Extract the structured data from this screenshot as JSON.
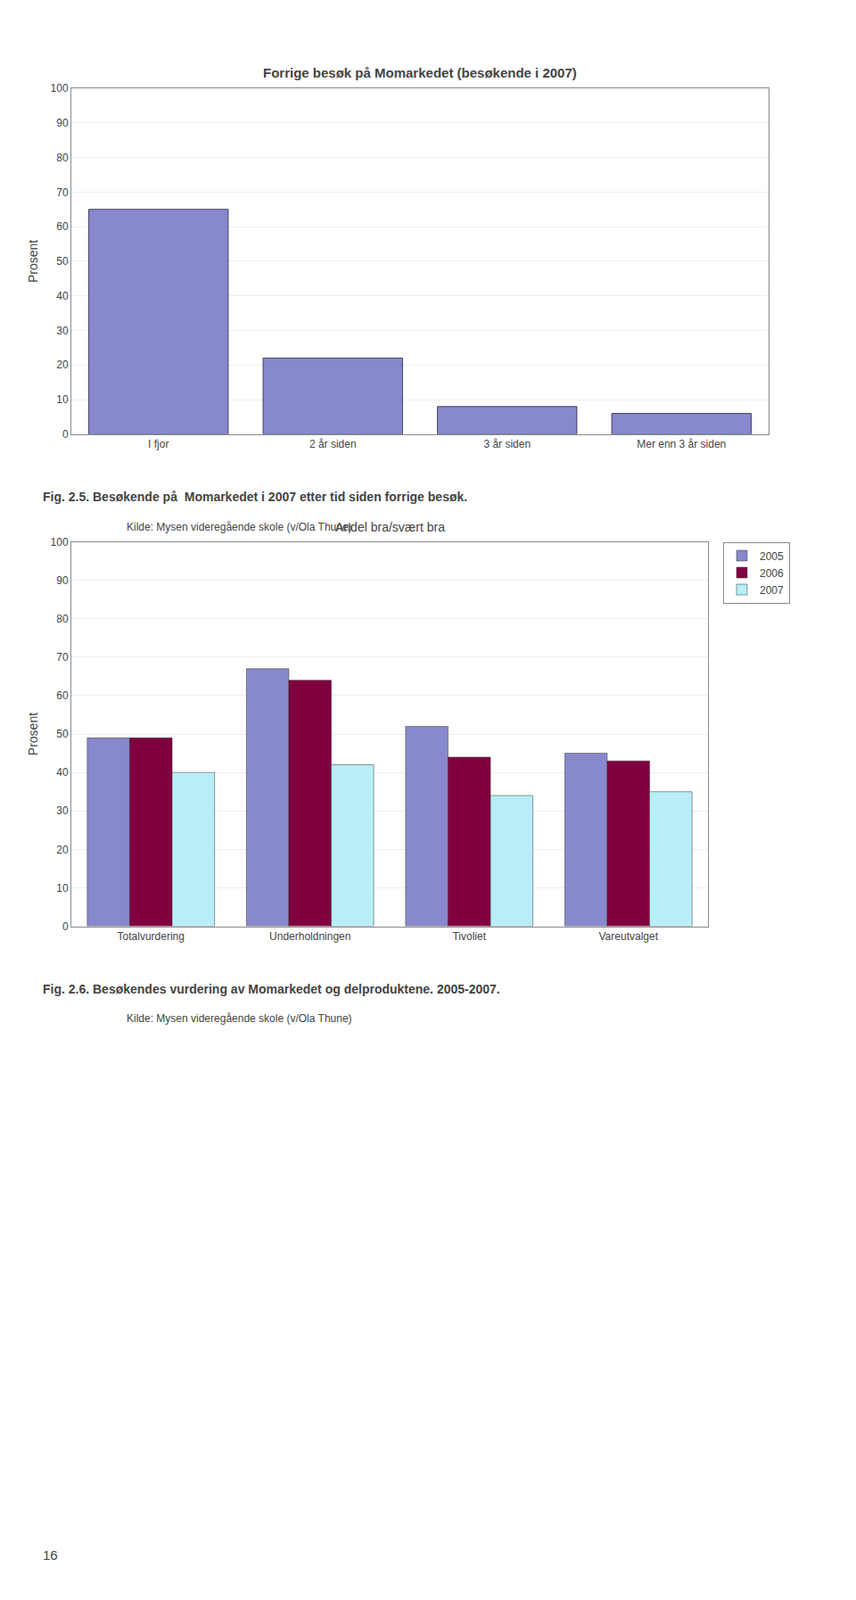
{
  "chart_data": [
    {
      "type": "bar",
      "title": "Forrige besøk på Momarkedet (besøkende i 2007)",
      "ylabel": "Prosent",
      "categories": [
        "I fjor",
        "2 år siden",
        "3 år siden",
        "Mer enn 3 år siden"
      ],
      "values": [
        65,
        22,
        8,
        6
      ],
      "color": "#8888cc",
      "ylim": [
        0,
        100
      ],
      "yticks": [
        0,
        10,
        20,
        30,
        40,
        50,
        60,
        70,
        80,
        90,
        100
      ],
      "grid": true,
      "annotations": [
        "Fig. 2.5. Besøkende på  Momarkedet i 2007 etter tid siden forrige besøk.",
        "Kilde: Mysen videregående skole (v/Ola Thune)"
      ]
    },
    {
      "type": "bar",
      "title": "Andel bra/svært bra",
      "ylabel": "Prosent",
      "categories": [
        "Totalvurdering",
        "Underholdningen",
        "Tivoliet",
        "Vareutvalget"
      ],
      "series": [
        {
          "name": "2005",
          "color": "#8888cc",
          "values": [
            49,
            67,
            52,
            45
          ]
        },
        {
          "name": "2006",
          "color": "#800040",
          "values": [
            49,
            64,
            44,
            43
          ]
        },
        {
          "name": "2007",
          "color": "#b8eef8",
          "values": [
            40,
            42,
            34,
            35
          ]
        }
      ],
      "ylim": [
        0,
        100
      ],
      "yticks": [
        0,
        10,
        20,
        30,
        40,
        50,
        60,
        70,
        80,
        90,
        100
      ],
      "grid": true,
      "legend": "right",
      "annotations": [
        "Fig. 2.6. Besøkendes vurdering av Momarkedet og delproduktene. 2005-2007.",
        "Kilde: Mysen videregående skole (v/Ola Thune)",
        "16"
      ]
    }
  ]
}
